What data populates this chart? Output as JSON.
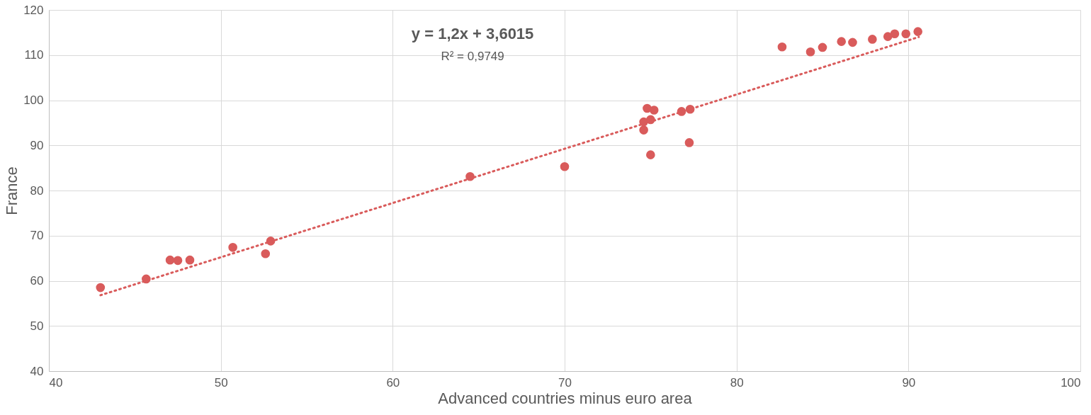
{
  "chart_data": {
    "type": "scatter",
    "xlabel": "Advanced countries minus euro area",
    "ylabel": "France",
    "xlim": [
      40,
      100
    ],
    "xticks": [
      40,
      50,
      60,
      70,
      80,
      90,
      100
    ],
    "ylim": [
      40,
      120
    ],
    "yticks": [
      40,
      50,
      60,
      70,
      80,
      90,
      100,
      110,
      120
    ],
    "grid": true,
    "annotations": [
      "y = 1,2x + 3,6015",
      "R² = 0,9749"
    ],
    "series": [
      {
        "color": "#d95b5b",
        "marker": "circle",
        "x": [
          43.0,
          45.66,
          47.05,
          47.5,
          48.2,
          50.7,
          52.6,
          52.9,
          64.5,
          70.0,
          75.0,
          77.25,
          74.6,
          74.6,
          75.0,
          74.8,
          75.2,
          76.8,
          77.3,
          82.65,
          84.3,
          85.0,
          86.1,
          86.75,
          87.9,
          88.8,
          89.2,
          89.85,
          90.55
        ],
        "values": [
          58.5,
          60.4,
          64.6,
          64.5,
          64.6,
          67.4,
          66.0,
          68.8,
          83.1,
          85.3,
          87.9,
          90.6,
          93.4,
          95.2,
          95.7,
          98.2,
          97.8,
          97.5,
          98.0,
          111.8,
          110.7,
          111.7,
          113.0,
          112.8,
          113.5,
          114.1,
          114.7,
          114.7,
          115.2
        ]
      },
      {
        "type": "line",
        "color": "#d95b5b",
        "line_style": "dotted",
        "x": [
          43.0,
          90.6
        ],
        "values": [
          56.8,
          114.0
        ]
      }
    ]
  }
}
